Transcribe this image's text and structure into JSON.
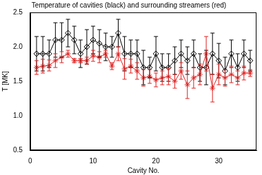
{
  "chart_data": {
    "type": "line",
    "title": "Temperature of cavities (black) and surrounding streamers (red)",
    "x_label": "Cavity No.",
    "y_label": "T [MK]",
    "x": [
      1,
      2,
      3,
      4,
      5,
      6,
      7,
      8,
      9,
      10,
      11,
      12,
      13,
      14,
      15,
      16,
      17,
      18,
      19,
      20,
      21,
      22,
      23,
      24,
      25,
      26,
      27,
      28,
      29,
      30,
      31,
      32,
      33,
      34,
      35
    ],
    "series": [
      {
        "name": "cavities",
        "color": "#000000",
        "marker": "diamond",
        "line_style": "solid",
        "values": [
          1.9,
          1.9,
          1.9,
          2.1,
          2.1,
          2.2,
          2.1,
          1.9,
          2.0,
          2.1,
          2.05,
          2.0,
          2.0,
          2.2,
          1.9,
          1.9,
          1.9,
          1.7,
          1.7,
          1.9,
          1.7,
          1.7,
          1.8,
          1.9,
          1.8,
          1.9,
          1.7,
          1.7,
          1.9,
          1.8,
          1.65,
          1.9,
          1.7,
          1.9,
          1.8
        ],
        "errors": [
          0.25,
          0.25,
          0.2,
          0.25,
          0.25,
          0.2,
          0.2,
          0.2,
          0.25,
          0.2,
          0.2,
          0.2,
          0.15,
          0.2,
          0.25,
          0.2,
          0.2,
          0.25,
          0.15,
          0.25,
          0.2,
          0.2,
          0.2,
          0.2,
          0.2,
          0.2,
          0.2,
          0.25,
          0.3,
          0.25,
          0.2,
          0.2,
          0.2,
          0.2,
          0.15
        ]
      },
      {
        "name": "streamers",
        "color": "#e02020",
        "marker": "star",
        "line_style": "solid",
        "values": [
          1.7,
          1.72,
          1.73,
          1.8,
          1.85,
          1.9,
          1.8,
          1.8,
          1.8,
          1.87,
          1.85,
          1.9,
          1.72,
          1.9,
          1.68,
          1.72,
          1.65,
          1.55,
          1.57,
          1.52,
          1.55,
          1.57,
          1.5,
          1.65,
          1.45,
          1.55,
          1.6,
          1.9,
          1.4,
          1.6,
          1.55,
          1.6,
          1.55,
          1.62,
          1.62
        ],
        "errors": [
          0.1,
          0.1,
          0.08,
          0.1,
          0.08,
          0.05,
          0.03,
          0.03,
          0.05,
          0.08,
          0.08,
          0.05,
          0.05,
          0.1,
          0.15,
          0.1,
          0.12,
          0.12,
          0.1,
          0.1,
          0.1,
          0.12,
          0.1,
          0.12,
          0.2,
          0.15,
          0.15,
          0.25,
          0.2,
          0.15,
          0.12,
          0.12,
          0.1,
          0.1,
          0.05
        ]
      }
    ],
    "xlim": [
      0,
      36
    ],
    "xticks": [
      0,
      10,
      20,
      30
    ],
    "ylim": [
      0.5,
      2.5
    ],
    "yticks": [
      0.5,
      {
        "value": 1.0,
        "label": "1.0"
      },
      1.5,
      {
        "value": 2.0,
        "label": "2.0"
      },
      2.5
    ],
    "grid": false
  }
}
